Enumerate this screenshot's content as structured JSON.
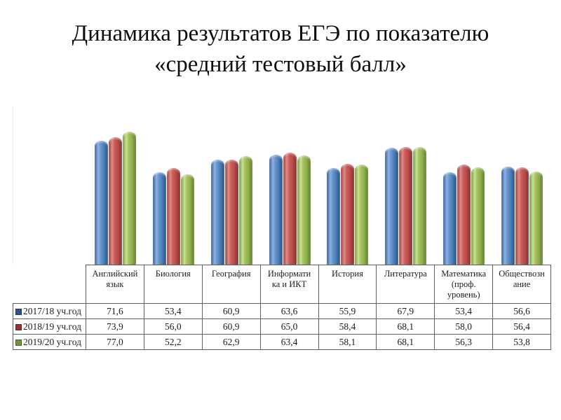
{
  "slide": {
    "title_line1": "Динамика результатов ЕГЭ по показателю",
    "title_line2": "«средний тестовый балл»"
  },
  "chart_data": {
    "type": "bar",
    "title": "Динамика результатов ЕГЭ по показателю «средний тестовый балл»",
    "categories": [
      "Английский язык",
      "Биология",
      "География",
      "Информатика и ИКТ",
      "История",
      "Литература",
      "Математика (проф. уровень)",
      "Обществознание"
    ],
    "category_display_lines": [
      [
        "Английский",
        "язык"
      ],
      [
        "Биология"
      ],
      [
        "География"
      ],
      [
        "Информати",
        "ка и ИКТ"
      ],
      [
        "История"
      ],
      [
        "Литература"
      ],
      [
        "Математика",
        "(проф.",
        "уровень)"
      ],
      [
        "Обществозн",
        "ание"
      ]
    ],
    "series": [
      {
        "name": "2017/18 уч.год",
        "color": "#4f81bd",
        "legend_swatch": "#31538f",
        "values": [
          71.6,
          53.4,
          60.9,
          63.6,
          55.9,
          67.9,
          53.4,
          56.6
        ]
      },
      {
        "name": "2018/19 уч.год",
        "color": "#c0504d",
        "legend_swatch": "#943634",
        "values": [
          73.9,
          56.0,
          60.9,
          65.0,
          58.4,
          68.1,
          58.0,
          56.4
        ]
      },
      {
        "name": "2019/20 уч.год",
        "color": "#9bbb59",
        "legend_swatch": "#76923c",
        "values": [
          77.0,
          52.2,
          62.9,
          63.4,
          58.1,
          68.1,
          56.3,
          53.8
        ]
      }
    ],
    "ylim": [
      0,
      90
    ],
    "gridlines": false,
    "value_axis_shown": false,
    "legend_position": "table-rows-left",
    "value_format": "decimal-comma",
    "data_table_shown": true
  }
}
